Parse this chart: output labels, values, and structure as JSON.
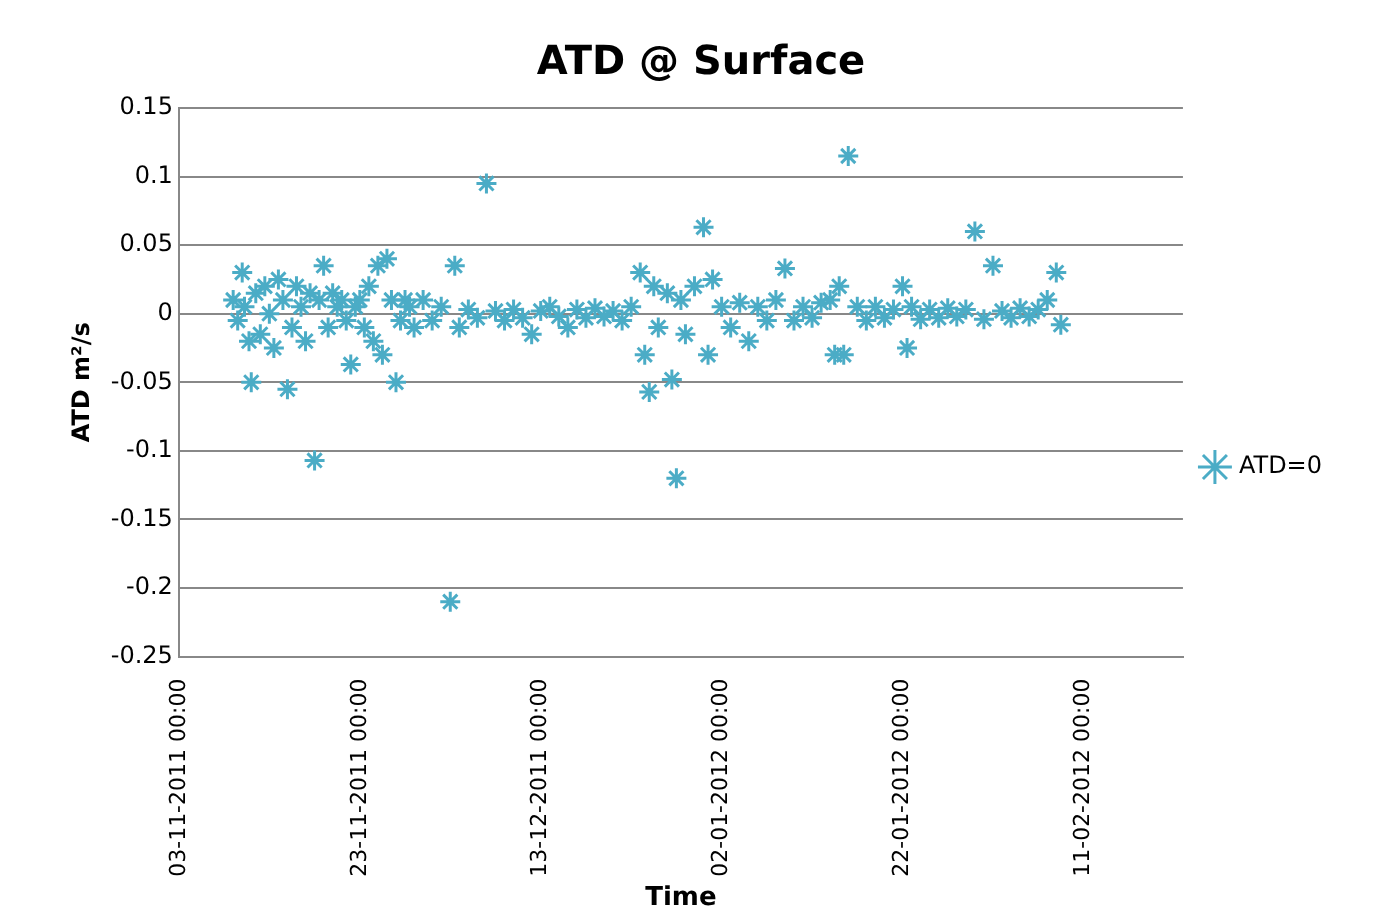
{
  "chart_data": {
    "type": "scatter",
    "title": "ATD @ Surface",
    "xlabel": "Time",
    "ylabel": "ATD m²/s",
    "xlim": [
      "2011-11-03",
      "2012-02-22"
    ],
    "xticks": [
      {
        "value": "2011-11-03",
        "label": "03-11-2011 00:00"
      },
      {
        "value": "2011-11-23",
        "label": "23-11-2011 00:00"
      },
      {
        "value": "2011-12-13",
        "label": "13-12-2011 00:00"
      },
      {
        "value": "2012-01-02",
        "label": "02-01-2012 00:00"
      },
      {
        "value": "2012-01-22",
        "label": "22-01-2012 00:00"
      },
      {
        "value": "2012-02-11",
        "label": "11-02-2012 00:00"
      }
    ],
    "ylim": [
      -0.25,
      0.15
    ],
    "yticks": [
      -0.25,
      -0.2,
      -0.15,
      -0.1,
      -0.05,
      0,
      0.05,
      0.1,
      0.15
    ],
    "grid": "y",
    "legend": "right",
    "marker": "cross",
    "series": [
      {
        "name": "ATD=0",
        "color": "#4bacc6",
        "x": [
          "2011-11-09T00:00",
          "2011-11-09T12:00",
          "2011-11-10T00:00",
          "2011-11-10T06:00",
          "2011-11-10T18:00",
          "2011-11-11T00:00",
          "2011-11-11T12:00",
          "2011-11-12T00:00",
          "2011-11-12T12:00",
          "2011-11-13T00:00",
          "2011-11-13T12:00",
          "2011-11-14T00:00",
          "2011-11-14T12:00",
          "2011-11-15T00:00",
          "2011-11-15T12:00",
          "2011-11-16T00:00",
          "2011-11-16T12:00",
          "2011-11-17T00:00",
          "2011-11-17T12:00",
          "2011-11-18T00:00",
          "2011-11-18T12:00",
          "2011-11-19T00:00",
          "2011-11-19T12:00",
          "2011-11-20T00:00",
          "2011-11-20T12:00",
          "2011-11-21T00:00",
          "2011-11-21T12:00",
          "2011-11-22T00:00",
          "2011-11-22T12:00",
          "2011-11-23T00:00",
          "2011-11-23T12:00",
          "2011-11-24T00:00",
          "2011-11-24T12:00",
          "2011-11-25T00:00",
          "2011-11-25T12:00",
          "2011-11-26T00:00",
          "2011-11-26T12:00",
          "2011-11-27T00:00",
          "2011-11-27T12:00",
          "2011-11-28T00:00",
          "2011-11-28T12:00",
          "2011-11-29T00:00",
          "2011-11-30T00:00",
          "2011-12-01T00:00",
          "2011-12-02T00:00",
          "2011-12-03T00:00",
          "2011-12-03T12:00",
          "2011-12-04T00:00",
          "2011-12-05T00:00",
          "2011-12-06T00:00",
          "2011-12-07T00:00",
          "2011-12-08T00:00",
          "2011-12-09T00:00",
          "2011-12-10T00:00",
          "2011-12-11T00:00",
          "2011-12-12T00:00",
          "2011-12-13T00:00",
          "2011-12-14T00:00",
          "2011-12-15T00:00",
          "2011-12-16T00:00",
          "2011-12-17T00:00",
          "2011-12-18T00:00",
          "2011-12-19T00:00",
          "2011-12-20T00:00",
          "2011-12-21T00:00",
          "2011-12-22T00:00",
          "2011-12-23T00:00",
          "2011-12-24T00:00",
          "2011-12-24T12:00",
          "2011-12-25T00:00",
          "2011-12-25T12:00",
          "2011-12-26T00:00",
          "2011-12-27T00:00",
          "2011-12-27T12:00",
          "2011-12-28T00:00",
          "2011-12-28T12:00",
          "2011-12-29T00:00",
          "2011-12-30T00:00",
          "2011-12-31T00:00",
          "2011-12-31T12:00",
          "2012-01-01T00:00",
          "2012-01-02T00:00",
          "2012-01-03T00:00",
          "2012-01-04T00:00",
          "2012-01-05T00:00",
          "2012-01-06T00:00",
          "2012-01-07T00:00",
          "2012-01-08T00:00",
          "2012-01-09T00:00",
          "2012-01-10T00:00",
          "2012-01-11T00:00",
          "2012-01-12T00:00",
          "2012-01-13T00:00",
          "2012-01-14T00:00",
          "2012-01-14T12:00",
          "2012-01-15T00:00",
          "2012-01-15T12:00",
          "2012-01-16T00:00",
          "2012-01-17T00:00",
          "2012-01-18T00:00",
          "2012-01-19T00:00",
          "2012-01-20T00:00",
          "2012-01-21T00:00",
          "2012-01-22T00:00",
          "2012-01-22T12:00",
          "2012-01-23T00:00",
          "2012-01-24T00:00",
          "2012-01-25T00:00",
          "2012-01-26T00:00",
          "2012-01-27T00:00",
          "2012-01-28T00:00",
          "2012-01-29T00:00",
          "2012-01-30T00:00",
          "2012-01-31T00:00",
          "2012-02-01T00:00",
          "2012-02-02T00:00",
          "2012-02-03T00:00",
          "2012-02-04T00:00",
          "2012-02-05T00:00",
          "2012-02-06T00:00",
          "2012-02-07T00:00",
          "2012-02-08T00:00",
          "2012-02-08T12:00"
        ],
        "values": [
          0.01,
          -0.005,
          0.03,
          0.005,
          -0.02,
          -0.05,
          0.015,
          -0.015,
          0.02,
          0,
          -0.025,
          0.025,
          0.01,
          -0.055,
          -0.01,
          0.02,
          0.005,
          -0.02,
          0.015,
          -0.107,
          0.01,
          0.035,
          -0.01,
          0.015,
          0.005,
          0.01,
          -0.005,
          -0.037,
          0.005,
          0.01,
          -0.01,
          0.02,
          -0.02,
          0.035,
          -0.03,
          0.04,
          0.01,
          -0.05,
          -0.005,
          0.01,
          0.005,
          -0.01,
          0.01,
          -0.005,
          0.005,
          -0.21,
          0.035,
          -0.01,
          0.003,
          -0.003,
          0.095,
          0.002,
          -0.005,
          0.003,
          -0.003,
          -0.015,
          0.002,
          0.005,
          -0.002,
          -0.01,
          0.003,
          -0.003,
          0.004,
          -0.002,
          0.002,
          -0.005,
          0.005,
          0.03,
          -0.03,
          -0.057,
          0.02,
          -0.01,
          0.015,
          -0.048,
          -0.12,
          0.01,
          -0.015,
          0.02,
          0.063,
          -0.03,
          0.025,
          0.005,
          -0.01,
          0.008,
          -0.02,
          0.005,
          -0.005,
          0.01,
          0.033,
          -0.005,
          0.005,
          -0.003,
          0.008,
          0.01,
          -0.03,
          0.02,
          -0.03,
          0.115,
          0.005,
          -0.005,
          0.005,
          -0.003,
          0.003,
          0.02,
          -0.025,
          0.005,
          -0.004,
          0.003,
          -0.003,
          0.004,
          -0.002,
          0.003,
          0.06,
          -0.004,
          0.035,
          0.002,
          -0.003,
          0.004,
          -0.002,
          0.003,
          0.01,
          0.03,
          -0.008
        ]
      }
    ]
  }
}
